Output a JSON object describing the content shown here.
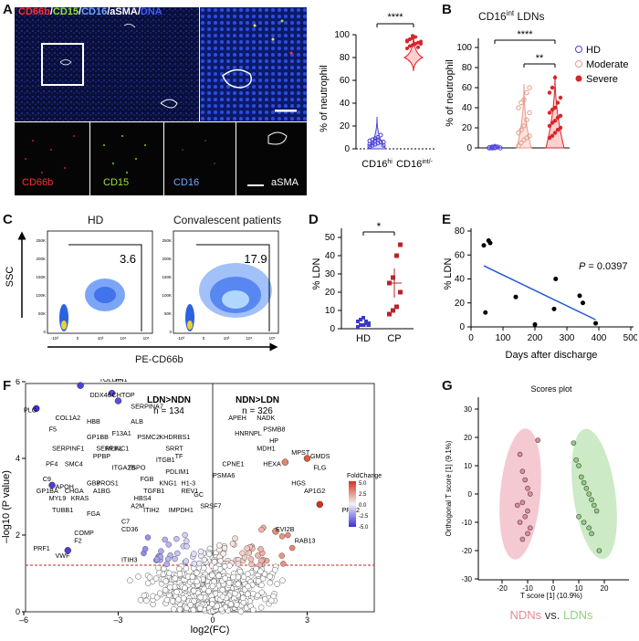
{
  "panels": {
    "A": {
      "letter": "A",
      "title_parts": [
        "CD66b",
        "/",
        "CD15",
        "/",
        "CD16",
        "/",
        "aSMA",
        "/",
        "DNA"
      ],
      "title_colors": [
        "#ff3030",
        "#ffffff",
        "#9be23a",
        "#ffffff",
        "#6fa8ff",
        "#ffffff",
        "#ffffff",
        "#ffffff",
        "#3a5cff"
      ],
      "channels": [
        {
          "label": "CD66b",
          "color": "#ff3030"
        },
        {
          "label": "CD15",
          "color": "#9be23a"
        },
        {
          "label": "CD16",
          "color": "#6fa8ff"
        },
        {
          "label": "aSMA",
          "color": "#ffffff"
        }
      ],
      "chart": {
        "ylabel": "% of neutrophil",
        "yticks": [
          "0",
          "20",
          "40",
          "60",
          "80",
          "100"
        ],
        "categories": [
          "CD16hi",
          "CD16int/-"
        ],
        "cat_main": [
          "CD16",
          "CD16"
        ],
        "cat_sup": [
          "hi",
          "int/-"
        ],
        "sig": "****"
      }
    },
    "B": {
      "letter": "B",
      "title_main": "CD16",
      "title_sup": "int",
      "title_rest": " LDNs",
      "ylabel": "% of neutrophil",
      "yticks": [
        "0",
        "20",
        "40",
        "60",
        "80",
        "100"
      ],
      "legend": [
        {
          "label": "HD",
          "color": "#4b3fd6"
        },
        {
          "label": "Moderate",
          "color": "#e39a88"
        },
        {
          "label": "Severe",
          "color": "#d9242b"
        }
      ],
      "sig1": "****",
      "sig2": "**"
    },
    "C": {
      "letter": "C",
      "plots": [
        {
          "title": "HD",
          "value": "3.6"
        },
        {
          "title": "Convalescent patients",
          "value": "17.9"
        }
      ],
      "ylabel": "SSC",
      "xlabel": "PE-CD66b",
      "yticks": [
        "250K",
        "200K",
        "150K",
        "100K",
        "50K",
        "0"
      ],
      "xticks": [
        "-10³",
        "0",
        "10³",
        "10⁴",
        "10⁵"
      ]
    },
    "D": {
      "letter": "D",
      "ylabel": "% LDN",
      "yticks": [
        "0",
        "10",
        "20",
        "30",
        "40",
        "50"
      ],
      "categories": [
        "HD",
        "CP"
      ],
      "sig": "*"
    },
    "E": {
      "letter": "E",
      "ylabel": "% LDN",
      "xlabel": "Days after discharge",
      "yticks": [
        "0",
        "20",
        "40",
        "60",
        "80"
      ],
      "xticks": [
        "0",
        "100",
        "200",
        "300",
        "400",
        "500"
      ],
      "pvalue_label": "P",
      "pvalue_text": " = 0.0397"
    },
    "F": {
      "letter": "F",
      "ylabel": "–log10 (P value)",
      "xlabel": "log2(FC)",
      "yticks": [
        "0",
        "2",
        "4",
        "6"
      ],
      "xticks": [
        "–6",
        "–3",
        "0",
        "3"
      ],
      "left_group": "LDN>NDN",
      "left_n": "n = 134",
      "right_group": "NDN>LDN",
      "right_n": "n = 326",
      "legend_title": "FoldChange",
      "legend_ticks": [
        "5.0",
        "2.5",
        "0.0",
        "-2.5",
        "-5.0"
      ],
      "labels": [
        "TOLLIP",
        "FN1",
        "DDX46",
        "CHTOP",
        "PLG",
        "COL1A2",
        "HBB",
        "ALB",
        "SERPINA7",
        "F5",
        "F13A1",
        "GP1BB",
        "PSMC2",
        "KHDRBS1",
        "SERPINC1",
        "SERPINF1",
        "MLKL",
        "SRRT",
        "PPBP",
        "ITGB1",
        "TF",
        "PF4",
        "SMC4",
        "ITGA2B",
        "TSPO",
        "PDLIM1",
        "C9",
        "APOH",
        "GB3",
        "PROS1",
        "FGB",
        "KNG1",
        "H1-3",
        "GP1BA",
        "CHGA",
        "A1BG",
        "TGFB1",
        "REV1",
        "MYL9",
        "KRAS",
        "HBS4",
        "A2M",
        "GC",
        "TUBB1",
        "FGA",
        "ITIH2",
        "IMPDH1",
        "SRSF7",
        "C7",
        "CD36",
        "COMP",
        "F2",
        "PRF1",
        "VWF",
        "ITIH3",
        "APEH",
        "NADK",
        "PSMB8",
        "HNRNPL",
        "HP",
        "MDH1",
        "CPNE1",
        "PSMA6",
        "HEXA",
        "MPST",
        "GMDS",
        "FLG",
        "HGS",
        "AP1G2",
        "EVI2B",
        "RAB13",
        "PRG2"
      ]
    },
    "G": {
      "letter": "G",
      "title": "Scores plot",
      "ylabel": "Orthogonal T score [1] (9.1%)",
      "xlabel": "T score [1] (10.9%)",
      "yticks": [
        "30",
        "20",
        "10",
        "0",
        "-10",
        "-20",
        "-30"
      ],
      "xticks": [
        "-20",
        "-10",
        "0",
        "10",
        "20"
      ],
      "legend_left": "NDNs",
      "legend_mid": " vs. ",
      "legend_right": "LDNs",
      "left_color": "#e8889a",
      "right_color": "#8fd17e"
    }
  },
  "chart_data": [
    {
      "type": "scatter",
      "title": "A: % of neutrophil",
      "categories": [
        "CD16hi",
        "CD16int/-"
      ],
      "series": [
        {
          "name": "CD16hi",
          "values": [
            2,
            3,
            4,
            5,
            6,
            6,
            7,
            8,
            9,
            10,
            12,
            3,
            4,
            5,
            7,
            8
          ]
        },
        {
          "name": "CD16int/-",
          "values": [
            88,
            90,
            91,
            92,
            93,
            94,
            95,
            96,
            97,
            98,
            89,
            92,
            94,
            96,
            99
          ]
        }
      ],
      "ylim": [
        0,
        100
      ]
    },
    {
      "type": "scatter",
      "title": "CD16int LDNs",
      "categories": [
        "HD",
        "Moderate",
        "Severe"
      ],
      "series": [
        {
          "name": "HD",
          "values": [
            0,
            0,
            0.5,
            1,
            0,
            0.3,
            0.8,
            0.2
          ]
        },
        {
          "name": "Moderate",
          "values": [
            2,
            5,
            8,
            10,
            12,
            15,
            18,
            22,
            28,
            35,
            40,
            45,
            48,
            55,
            60
          ]
        },
        {
          "name": "Severe",
          "values": [
            10,
            12,
            15,
            18,
            20,
            22,
            25,
            27,
            30,
            32,
            35,
            38,
            40,
            45,
            50,
            55,
            60,
            70
          ]
        }
      ],
      "ylim": [
        0,
        100
      ]
    },
    {
      "type": "scatter",
      "title": "D: % LDN",
      "categories": [
        "HD",
        "CP"
      ],
      "series": [
        {
          "name": "HD",
          "values": [
            1,
            2,
            2,
            3,
            3,
            4,
            5,
            6,
            4,
            2
          ]
        },
        {
          "name": "CP",
          "values": [
            8,
            10,
            12,
            20,
            25,
            28,
            40,
            46
          ]
        }
      ],
      "ylim": [
        0,
        50
      ]
    },
    {
      "type": "scatter",
      "title": "E: % LDN vs days after discharge",
      "x": [
        40,
        45,
        60,
        55,
        140,
        200,
        265,
        260,
        340,
        350,
        390
      ],
      "y": [
        68,
        12,
        70,
        72,
        25,
        2,
        40,
        15,
        26,
        20,
        3
      ],
      "xlabel": "Days after discharge",
      "ylabel": "% LDN",
      "xlim": [
        0,
        500
      ],
      "ylim": [
        0,
        80
      ]
    },
    {
      "type": "scatter",
      "title": "G: Scores plot",
      "series": [
        {
          "name": "NDNs",
          "x": [
            -13,
            -12,
            -11,
            -10,
            -9,
            -12,
            -10,
            -11,
            -13,
            -9,
            -10,
            -12,
            -14,
            -6
          ],
          "y": [
            14,
            8,
            5,
            2,
            0,
            -3,
            -6,
            -8,
            -10,
            -12,
            -14,
            -16,
            -4,
            19
          ]
        },
        {
          "name": "LDNs",
          "x": [
            8,
            9,
            10,
            11,
            12,
            13,
            14,
            15,
            16,
            17,
            10,
            12,
            14,
            15,
            18
          ],
          "y": [
            18,
            12,
            10,
            6,
            4,
            2,
            0,
            -2,
            -4,
            -6,
            -8,
            -10,
            -12,
            -14,
            -20
          ]
        }
      ],
      "xlim": [
        -30,
        30
      ],
      "ylim": [
        -30,
        30
      ]
    }
  ]
}
